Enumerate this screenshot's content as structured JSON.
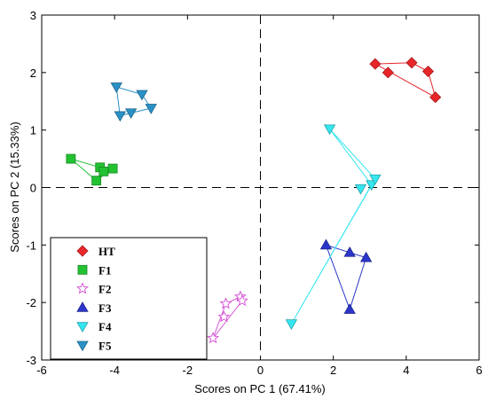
{
  "chart_data": {
    "type": "scatter",
    "xlabel": "Scores on PC 1 (67.41%)",
    "ylabel": "Scores on PC 2 (15.33%)",
    "xlim": [
      -6,
      6
    ],
    "ylim": [
      -3,
      3
    ],
    "xticks": [
      -6,
      -4,
      -2,
      0,
      2,
      4,
      6
    ],
    "yticks": [
      -3,
      -2,
      -1,
      0,
      1,
      2,
      3
    ],
    "grid": false,
    "zero_lines": "dashed",
    "legend_position": "bottom-left",
    "series": [
      {
        "name": "HT",
        "marker": "diamond",
        "color": "#e8262a",
        "points": [
          [
            3.15,
            2.15
          ],
          [
            3.5,
            2.0
          ],
          [
            4.15,
            2.17
          ],
          [
            4.6,
            2.02
          ],
          [
            4.8,
            1.57
          ]
        ],
        "outline": [
          0,
          2,
          3,
          4,
          0
        ]
      },
      {
        "name": "F1",
        "marker": "square",
        "color": "#22c232",
        "points": [
          [
            -5.2,
            0.5
          ],
          [
            -4.4,
            0.35
          ],
          [
            -4.3,
            0.28
          ],
          [
            -4.05,
            0.33
          ],
          [
            -4.5,
            0.12
          ]
        ],
        "outline": [
          0,
          1,
          3,
          4,
          0
        ]
      },
      {
        "name": "F2",
        "marker": "star",
        "color": "#d65ad6",
        "points": [
          [
            -1.3,
            -2.62
          ],
          [
            -1.0,
            -2.25
          ],
          [
            -0.95,
            -2.02
          ],
          [
            -0.55,
            -1.9
          ],
          [
            -0.5,
            -1.97
          ]
        ],
        "outline": [
          0,
          2,
          3,
          4,
          0
        ]
      },
      {
        "name": "F3",
        "marker": "triangle-up",
        "color": "#2b36c9",
        "points": [
          [
            1.8,
            -1.0
          ],
          [
            2.45,
            -1.13
          ],
          [
            2.9,
            -1.22
          ],
          [
            2.45,
            -2.12
          ]
        ],
        "outline": [
          0,
          1,
          2,
          3,
          0
        ]
      },
      {
        "name": "F4",
        "marker": "triangle-down",
        "color": "#35e6f0",
        "points": [
          [
            1.9,
            1.02
          ],
          [
            2.75,
            -0.02
          ],
          [
            3.05,
            0.05
          ],
          [
            3.15,
            0.15
          ],
          [
            0.85,
            -2.37
          ]
        ],
        "outline": [
          0,
          3,
          4,
          2,
          0
        ]
      },
      {
        "name": "F5",
        "marker": "triangle-down",
        "color": "#2a91c6",
        "points": [
          [
            -3.95,
            1.75
          ],
          [
            -3.85,
            1.25
          ],
          [
            -3.55,
            1.3
          ],
          [
            -3.25,
            1.62
          ],
          [
            -3.0,
            1.38
          ]
        ],
        "outline": [
          0,
          3,
          4,
          1,
          0
        ]
      }
    ]
  }
}
